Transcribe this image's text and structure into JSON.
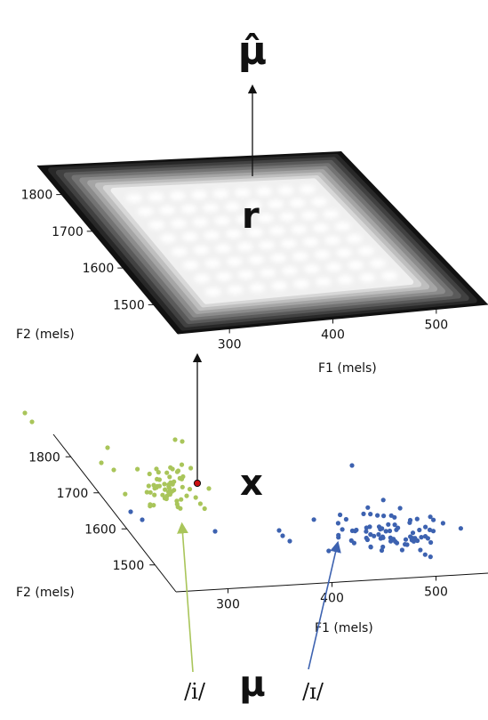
{
  "symbols": {
    "mu_hat": "μ̂",
    "r": "r",
    "x": "x",
    "mu": "μ"
  },
  "top_plot": {
    "xlabel": "F1 (mels)",
    "ylabel": "F2 (mels)",
    "xticks": [
      "300",
      "400",
      "500"
    ],
    "yticks": [
      "1800",
      "1700",
      "1600",
      "1500"
    ]
  },
  "bottom_plot": {
    "xlabel": "F1 (mels)",
    "ylabel": "F2 (mels)",
    "xticks": [
      "300",
      "400",
      "500"
    ],
    "yticks": [
      "1800",
      "1700",
      "1600",
      "1500"
    ]
  },
  "categories": {
    "i": {
      "label": "/i/",
      "color": "#a9c55a"
    },
    "ih": {
      "label": "/ɪ/",
      "color": "#3d62b0"
    }
  },
  "stimulus_color": "#cc1111",
  "colors": {
    "surface_dark": "#111111",
    "surface_light": "#f4f4f4"
  }
}
